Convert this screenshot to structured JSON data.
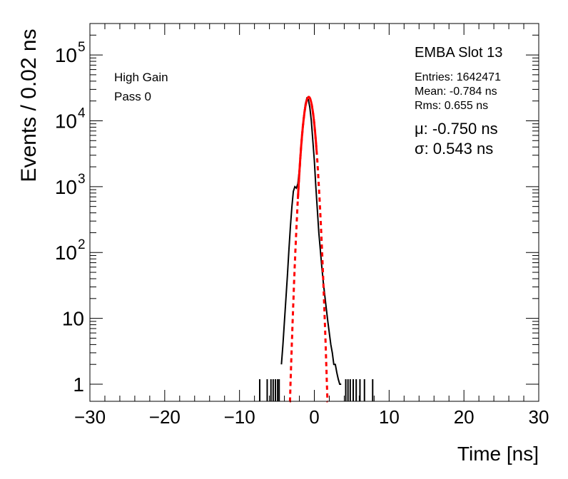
{
  "chart_data": {
    "type": "line",
    "title": "",
    "xlabel": "Time [ns]",
    "ylabel": "Events / 0.02 ns",
    "xlim": [
      -30,
      30
    ],
    "ylim": [
      0.55,
      300000
    ],
    "yscale": "log",
    "grid": false,
    "xticks": [
      -30,
      -20,
      -10,
      0,
      10,
      20,
      30
    ],
    "xtick_labels": [
      "−30",
      "−20",
      "−10",
      "0",
      "10",
      "20",
      "30"
    ],
    "yticks": [
      1,
      10,
      100,
      1000,
      10000,
      100000
    ],
    "ytick_labels": [
      {
        "base": "1",
        "exp": ""
      },
      {
        "base": "10",
        "exp": ""
      },
      {
        "base": "10",
        "exp": "2"
      },
      {
        "base": "10",
        "exp": "3"
      },
      {
        "base": "10",
        "exp": "4"
      },
      {
        "base": "10",
        "exp": "5"
      }
    ],
    "annotations": {
      "gain": "High Gain",
      "pass": "Pass 0",
      "module": "EMBA Slot 13",
      "entries": "Entries: 1642471",
      "mean": "Mean: -0.784 ns",
      "rms": "Rms: 0.655 ns",
      "mu": "μ: -0.750 ns",
      "sigma": "σ: 0.543 ns"
    },
    "series": [
      {
        "kind": "histogram",
        "color": "#000000",
        "x": [
          -4.4,
          -4.2,
          -4.0,
          -3.8,
          -3.6,
          -3.4,
          -3.2,
          -3.0,
          -2.8,
          -2.6,
          -2.4,
          -2.2,
          -2.0,
          -1.8,
          -1.6,
          -1.4,
          -1.2,
          -1.0,
          -0.8,
          -0.6,
          -0.4,
          -0.2,
          0.0,
          0.2,
          0.4,
          0.6,
          0.8,
          1.0,
          1.2,
          1.4,
          1.6,
          1.8,
          2.0,
          2.2,
          2.4,
          2.6,
          2.8,
          3.0,
          3.2,
          3.4,
          3.6
        ],
        "y": [
          2,
          4,
          9,
          20,
          45,
          110,
          250,
          500,
          850,
          1000,
          950,
          1100,
          1800,
          3500,
          7000,
          12000,
          18000,
          22000,
          21000,
          16000,
          10000,
          5000,
          2500,
          1000,
          450,
          200,
          110,
          60,
          35,
          22,
          14,
          9,
          6,
          4,
          3,
          2,
          2,
          1.5,
          1.2,
          1,
          1
        ]
      },
      {
        "kind": "spikes",
        "color": "#000000",
        "x": [
          -7.3,
          -6.3,
          -5.8,
          -5.5,
          -5.2,
          -4.9,
          -4.7,
          4.2,
          4.5,
          4.8,
          5.2,
          5.6,
          6.1,
          6.7,
          7.8
        ],
        "y": [
          1,
          1,
          1,
          1,
          1,
          1,
          1,
          1,
          1,
          1,
          1,
          1,
          1,
          1,
          1
        ]
      },
      {
        "kind": "fit-solid",
        "color": "#ff0000",
        "mu": -0.75,
        "sigma": 0.543,
        "amplitude": 23000,
        "range": [
          -2.2,
          0.3
        ]
      },
      {
        "kind": "fit-dashed",
        "color": "#ff0000",
        "mu": -0.75,
        "sigma": 0.543,
        "amplitude": 23000,
        "range": [
          -3.3,
          1.8
        ]
      }
    ]
  }
}
